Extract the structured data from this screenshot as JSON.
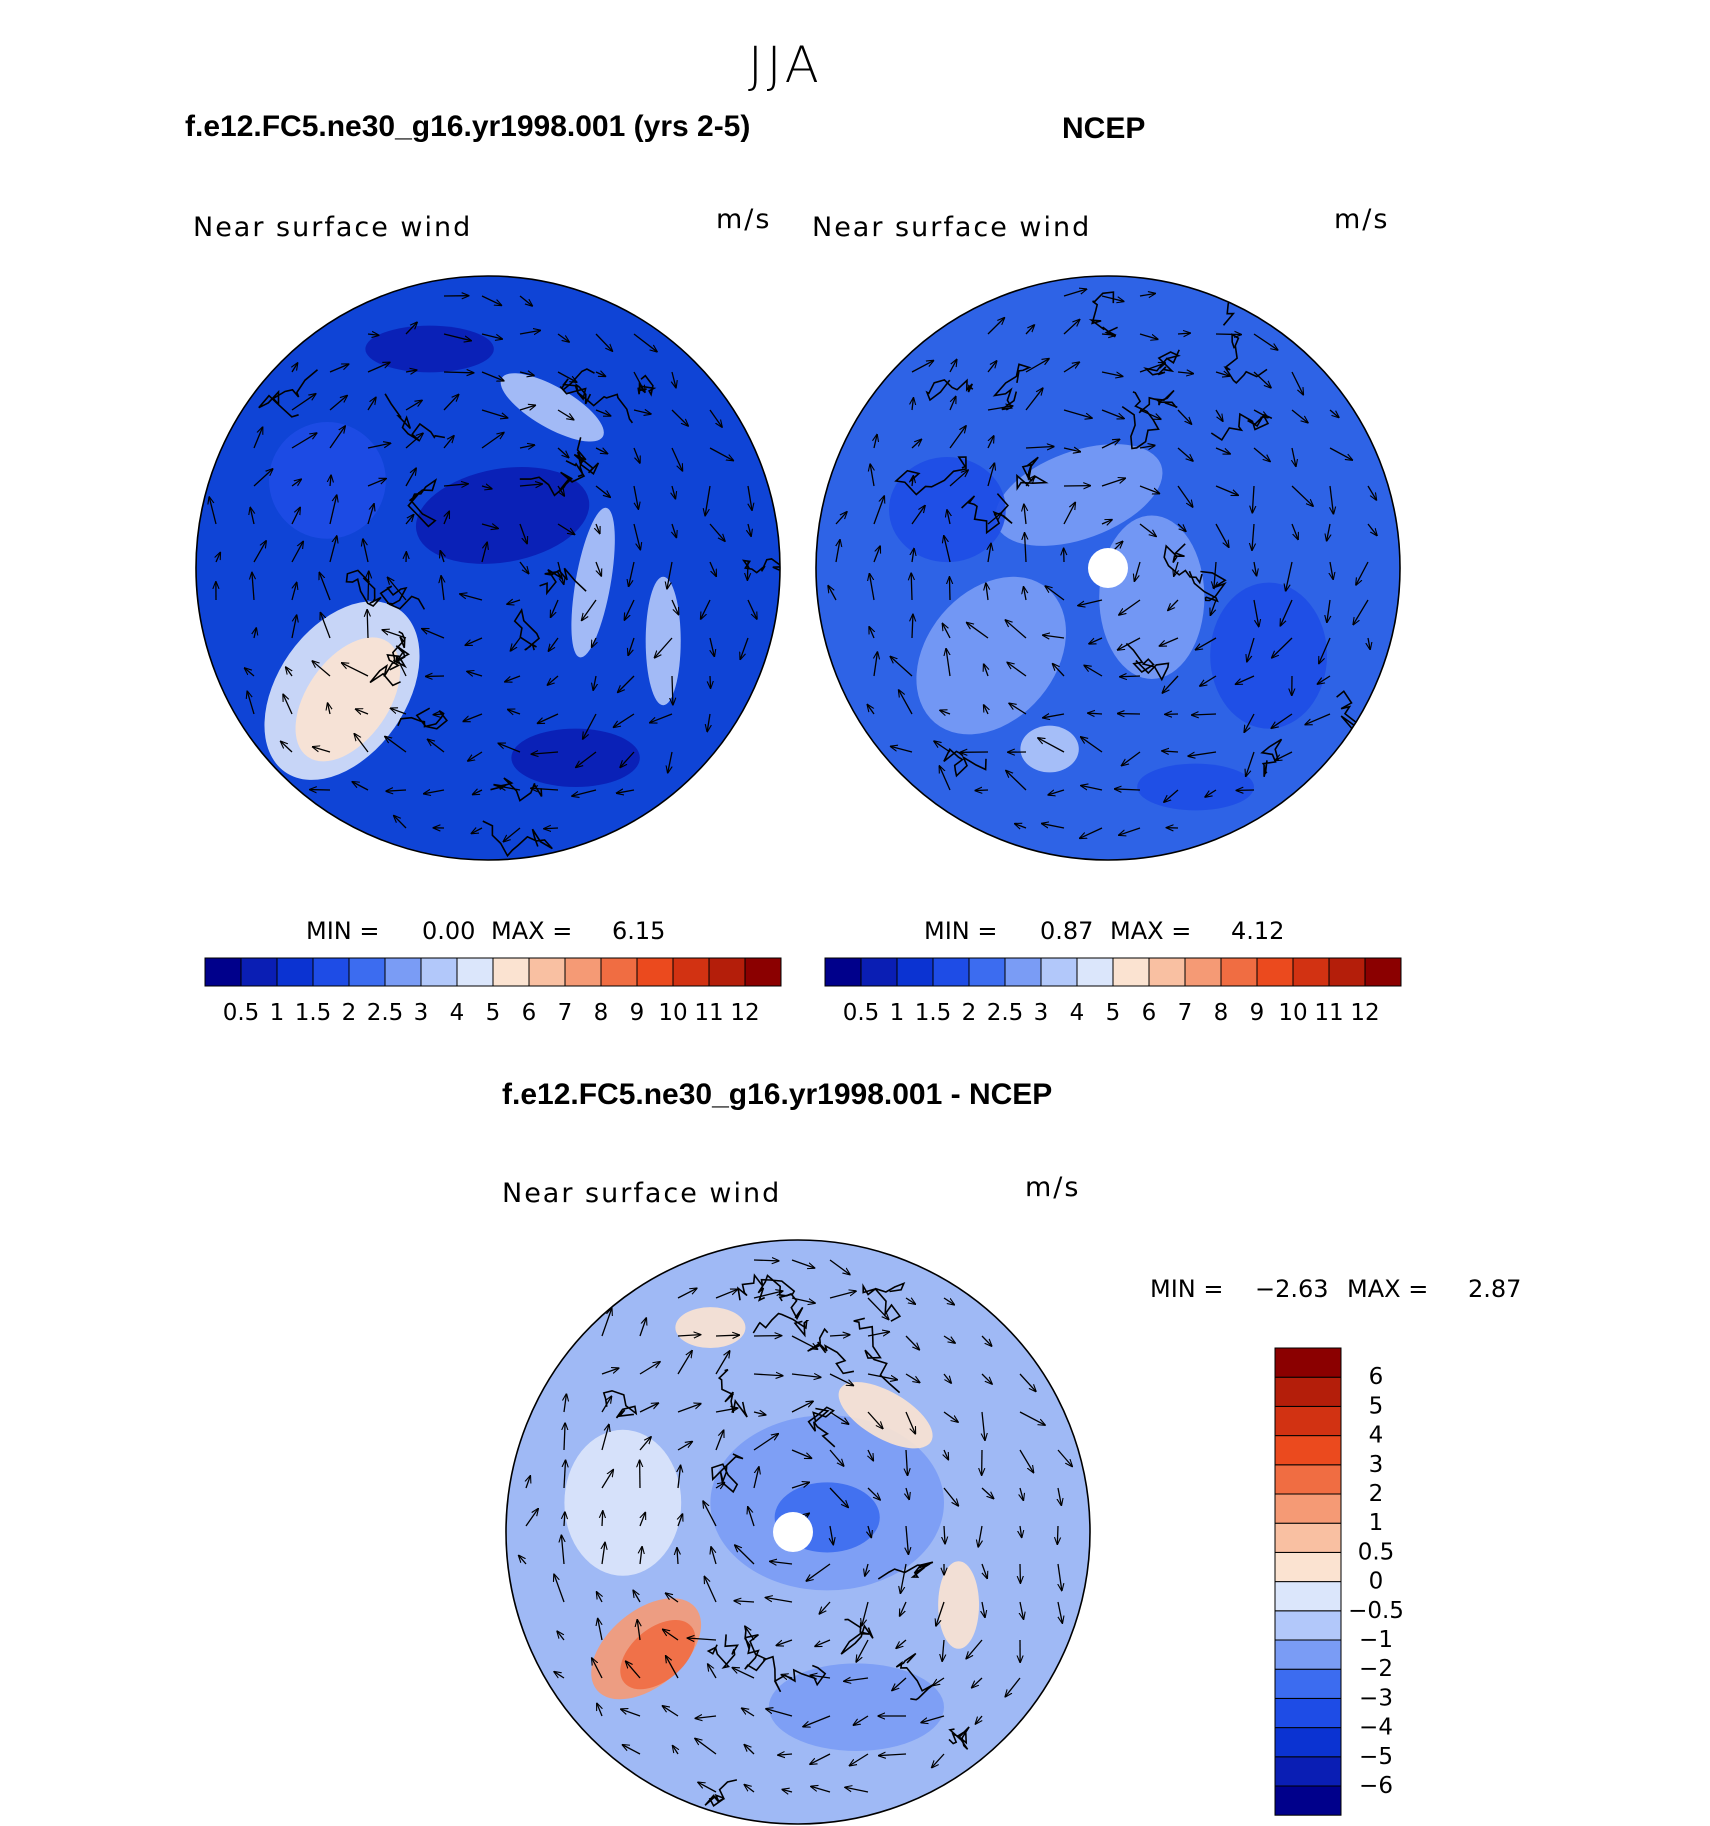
{
  "figure_title": "JJA",
  "panels": [
    {
      "id": "model",
      "title": "f.e12.FC5.ne30_g16.yr1998.001 (yrs 2-5)",
      "left_label": "Near surface wind",
      "right_label": "m/s",
      "min_label": "MIN =",
      "min_value": "0.00",
      "max_label": "MAX =",
      "max_value": "6.15",
      "background": "#0f44d6",
      "pole_hole": false
    },
    {
      "id": "ncep",
      "title": "NCEP",
      "left_label": "Near surface wind",
      "right_label": "m/s",
      "min_label": "MIN =",
      "min_value": "0.87",
      "max_label": "MAX =",
      "max_value": "4.12",
      "background": "#2e63e6",
      "pole_hole": true
    },
    {
      "id": "diff",
      "title": "f.e12.FC5.ne30_g16.yr1998.001 - NCEP",
      "left_label": "Near surface wind",
      "right_label": "m/s",
      "min_label": "MIN =",
      "min_value": "−2.63",
      "max_label": "MAX =",
      "max_value": "2.87",
      "background": "#9fb9f5",
      "pole_hole": true
    }
  ],
  "colorbar_abs": {
    "colors": [
      "#00008b",
      "#0a1eb4",
      "#0b33d2",
      "#1e4ce6",
      "#3c6cf0",
      "#7a9cf5",
      "#b2c8fa",
      "#dbe6fb",
      "#fbe3d1",
      "#f9c0a2",
      "#f59a75",
      "#f06d42",
      "#eb4a1e",
      "#d23212",
      "#b41e0a",
      "#8b0000"
    ],
    "labels": [
      "0.5",
      "1",
      "1.5",
      "2",
      "2.5",
      "3",
      "4",
      "5",
      "6",
      "7",
      "8",
      "9",
      "10",
      "11",
      "12"
    ]
  },
  "colorbar_diff": {
    "colors": [
      "#00008b",
      "#0a1eb4",
      "#0b33d2",
      "#1e4ce6",
      "#3c6cf0",
      "#7a9cf5",
      "#b2c8fa",
      "#dbe6fb",
      "#fbe3d1",
      "#f9c0a2",
      "#f59a75",
      "#f06d42",
      "#eb4a1e",
      "#d23212",
      "#b41e0a",
      "#8b0000"
    ],
    "labels": [
      "−6",
      "−5",
      "−4",
      "−3",
      "−2",
      "−1",
      "−0.5",
      "0",
      "0.5",
      "1",
      "2",
      "3",
      "4",
      "5",
      "6"
    ]
  }
}
